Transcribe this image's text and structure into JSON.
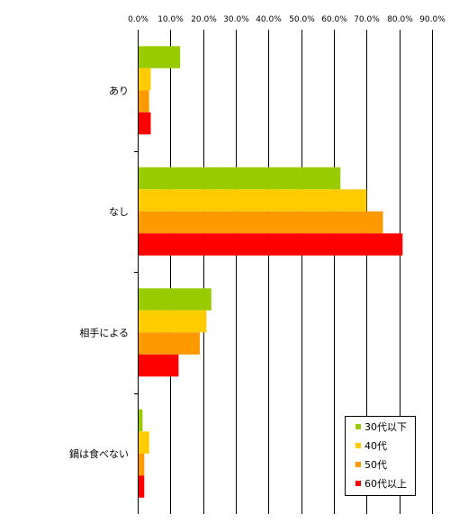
{
  "chart_data": {
    "type": "bar",
    "orientation": "horizontal",
    "title": "",
    "xlabel": "",
    "ylabel": "",
    "xlim": [
      0,
      90
    ],
    "x_ticks": [
      "0.0%",
      "10.0%",
      "20.0%",
      "30.0%",
      "40.0%",
      "50.0%",
      "60.0%",
      "70.0%",
      "80.0%",
      "90.0%"
    ],
    "x_tick_values": [
      0,
      10,
      20,
      30,
      40,
      50,
      60,
      70,
      80,
      90
    ],
    "x_axis_position": "top",
    "grid": true,
    "legend_position": "bottom-right",
    "categories": [
      "あり",
      "なし",
      "相手による",
      "鍋は食べない"
    ],
    "series": [
      {
        "name": "30代以下",
        "color": "#99cc00",
        "values": [
          13.0,
          62.0,
          22.5,
          1.5
        ]
      },
      {
        "name": "40代",
        "color": "#ffcc00",
        "values": [
          4.0,
          70.0,
          21.0,
          3.5
        ]
      },
      {
        "name": "50代",
        "color": "#ff9900",
        "values": [
          3.5,
          75.0,
          19.0,
          2.0
        ]
      },
      {
        "name": "60代以上",
        "color": "#ff0000",
        "values": [
          4.0,
          81.0,
          12.5,
          2.0
        ]
      }
    ]
  }
}
